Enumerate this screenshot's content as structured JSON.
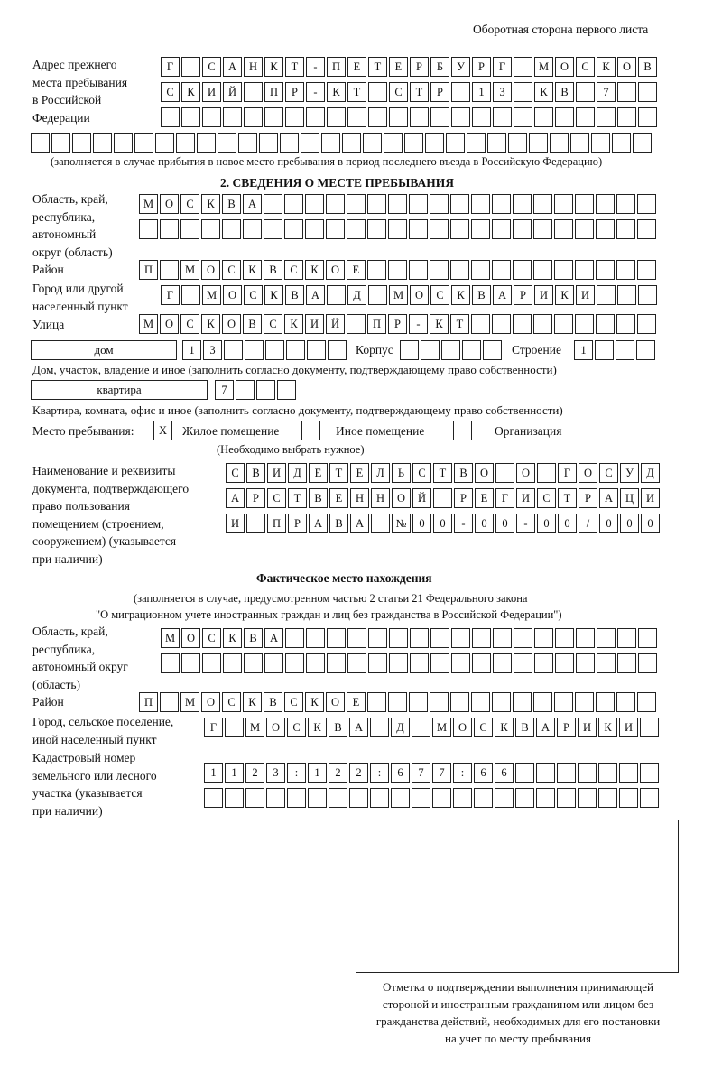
{
  "header": "Оборотная сторона первого листа",
  "prev_address": {
    "label": "Адрес прежнего\nместа пребывания\nв Российской\nФедерации",
    "rows": [
      "Г САНКТ-ПЕТЕРБУРГ МОСКОВ",
      "СКИЙ ПР-КТ СТР 13 КВ 7",
      "",
      ""
    ],
    "note": "(заполняется в случае прибытия в новое место пребывания в период последнего въезда в Российскую Федерацию)"
  },
  "section2": {
    "title": "2. СВЕДЕНИЯ О МЕСТЕ ПРЕБЫВАНИЯ",
    "region": {
      "label": "Область, край,\nреспублика,\nавтономный\nокруг (область)",
      "rows": [
        "МОСКВА",
        ""
      ]
    },
    "district": {
      "label": "Район",
      "value": "П МОСКВСКОЕ"
    },
    "city": {
      "label": "Город или другой\nнаселенный пункт",
      "value": "Г МОСКВА Д МОСКВАРИКИ"
    },
    "street": {
      "label": "Улица",
      "value": "МОСКОВСКИЙ ПР-КТ"
    },
    "house": {
      "type": "дом",
      "number": "13",
      "korpus_label": "Корпус",
      "korpus": "",
      "building_label": "Строение",
      "building": "1",
      "note": "Дом, участок, владение и иное (заполнить согласно документу, подтверждающему право собственности)"
    },
    "flat": {
      "type": "квартира",
      "number": "7",
      "note": "Квартира, комната, офис и иное (заполнить согласно документу, подтверждающему право собственности)"
    },
    "stay_place": {
      "label": "Место пребывания:",
      "options": [
        {
          "label": "Жилое помещение",
          "mark": "X"
        },
        {
          "label": "Иное помещение",
          "mark": ""
        },
        {
          "label": "Организация",
          "mark": ""
        }
      ],
      "hint": "(Необходимо выбрать нужное)"
    },
    "document": {
      "label": "Наименование и реквизиты\nдокумента, подтверждающего\nправо пользования\nпомещением (строением,\nсооружением) (указывается\nпри наличии)",
      "rows": [
        "СВИДЕТЕЛЬСТВО О ГОСУД",
        "АРСТВЕННОЙ РЕГИСТРАЦИ",
        "И ПРАВА №00-00-00/000"
      ]
    }
  },
  "actual": {
    "title": "Фактическое место нахождения",
    "note1": "(заполняется в случае, предусмотренном частью 2 статьи 21 Федерального закона",
    "note2": "\"О миграционном учете иностранных граждан и лиц без гражданства в Российской Федерации\")",
    "region": {
      "label": "Область, край,\nреспублика,\nавтономный округ\n(область)",
      "rows": [
        "МОСКВА",
        ""
      ]
    },
    "district": {
      "label": "Район",
      "value": "П МОСКВСКОЕ"
    },
    "city": {
      "label": "Город, сельское поселение,\nиной населенный пункт",
      "value": "Г МОСКВА Д МОСКВАРИКИ"
    },
    "cadastral": {
      "label": "Кадастровый номер\nземельного или лесного\nучастка (указывается\nпри наличии)",
      "rows": [
        "1123:122:677:66",
        ""
      ]
    }
  },
  "stamp_caption": "Отметка о подтверждении выполнения принимающей\nстороной и иностранным гражданином или лицом без\nгражданства действий, необходимых для его постановки\nна учет по месту пребывания"
}
